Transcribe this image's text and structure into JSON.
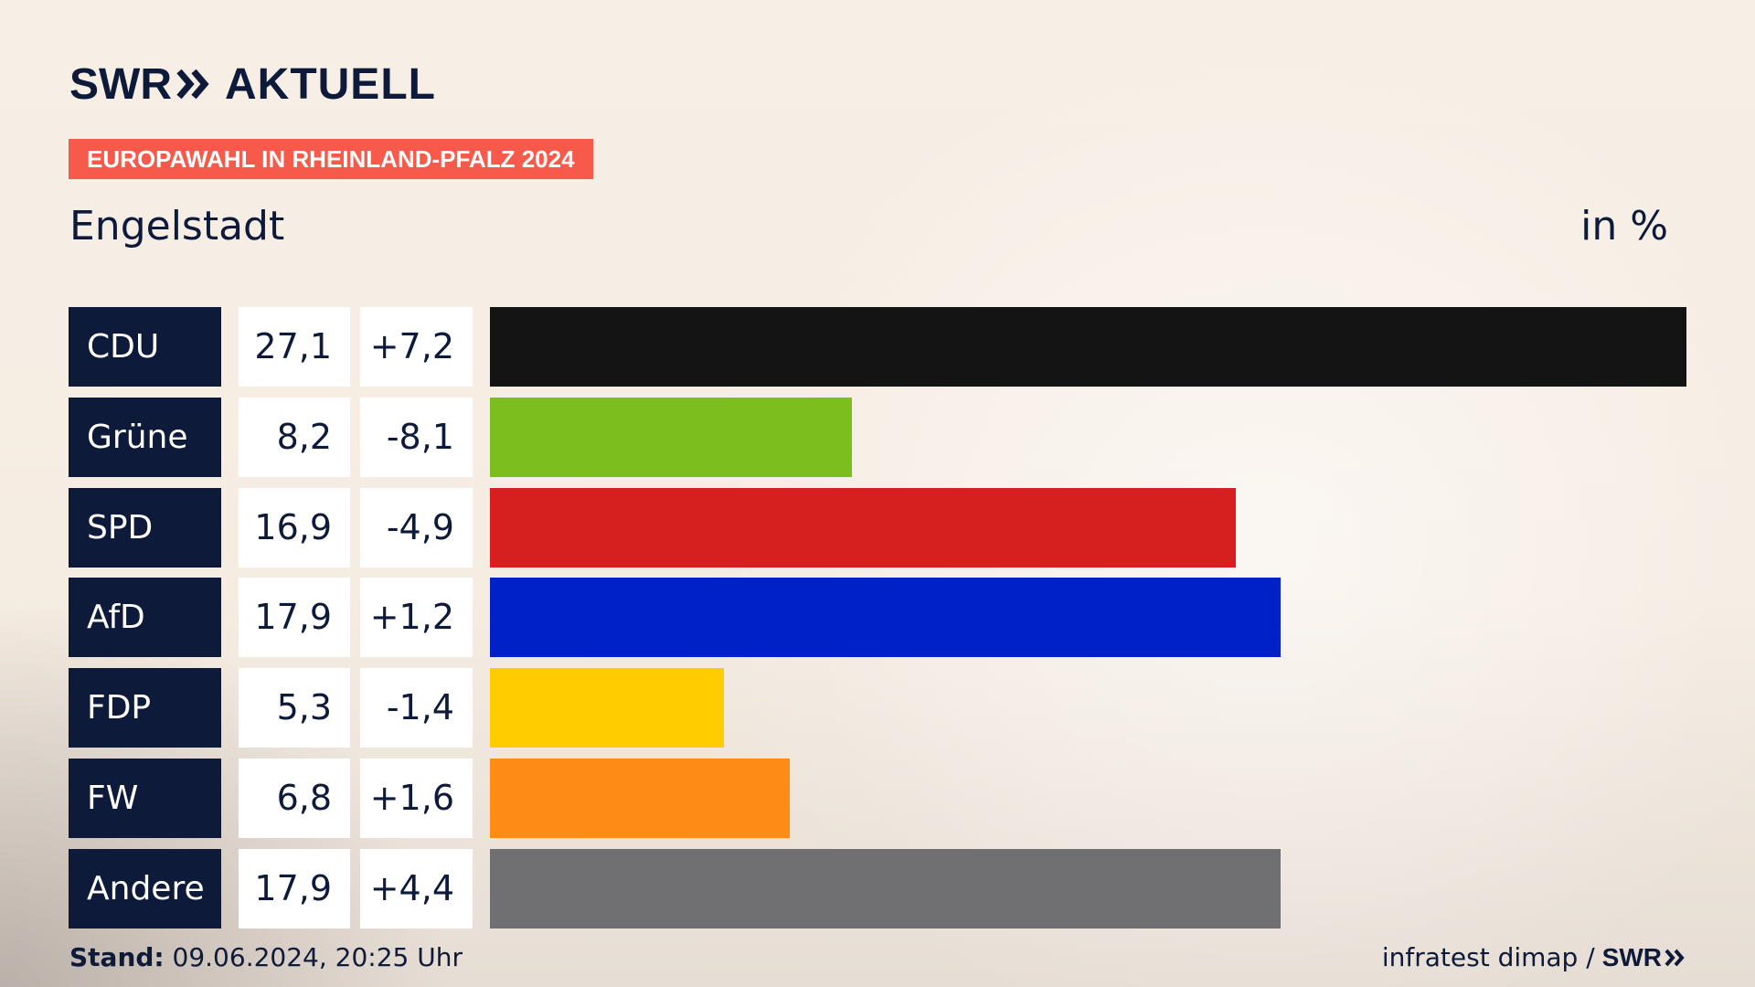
{
  "header": {
    "logo_brand": "SWR",
    "logo_suffix": "AKTUELL",
    "badge": "EUROPAWAHL IN RHEINLAND-PFALZ 2024",
    "region": "Engelstadt",
    "unit": "in %"
  },
  "colors": {
    "navy": "#0e1a3a",
    "badge": "#f75a4a"
  },
  "chart_data": {
    "type": "bar",
    "orientation": "horizontal",
    "title": "Engelstadt",
    "unit": "in %",
    "categories": [
      "CDU",
      "Grüne",
      "SPD",
      "AfD",
      "FDP",
      "FW",
      "Andere"
    ],
    "values": [
      27.1,
      8.2,
      16.9,
      17.9,
      5.3,
      6.8,
      17.9
    ],
    "value_labels": [
      "27,1",
      "8,2",
      "16,9",
      "17,9",
      "5,3",
      "6,8",
      "17,9"
    ],
    "changes": [
      7.2,
      -8.1,
      -4.9,
      1.2,
      -1.4,
      1.6,
      4.4
    ],
    "change_labels": [
      "+7,2",
      "-8,1",
      "-4,9",
      "+1,2",
      "-1,4",
      "+1,6",
      "+4,4"
    ],
    "bar_colors": [
      "#141414",
      "#7bbe1e",
      "#d61f1f",
      "#0021c8",
      "#ffcc00",
      "#ff8c17",
      "#707073"
    ],
    "xlim": [
      0,
      27.1
    ],
    "grid": false,
    "legend": "none"
  },
  "footer": {
    "stand_label": "Stand:",
    "stand_value": "09.06.2024, 20:25 Uhr",
    "source": "infratest dimap /",
    "source_brand": "SWR"
  }
}
